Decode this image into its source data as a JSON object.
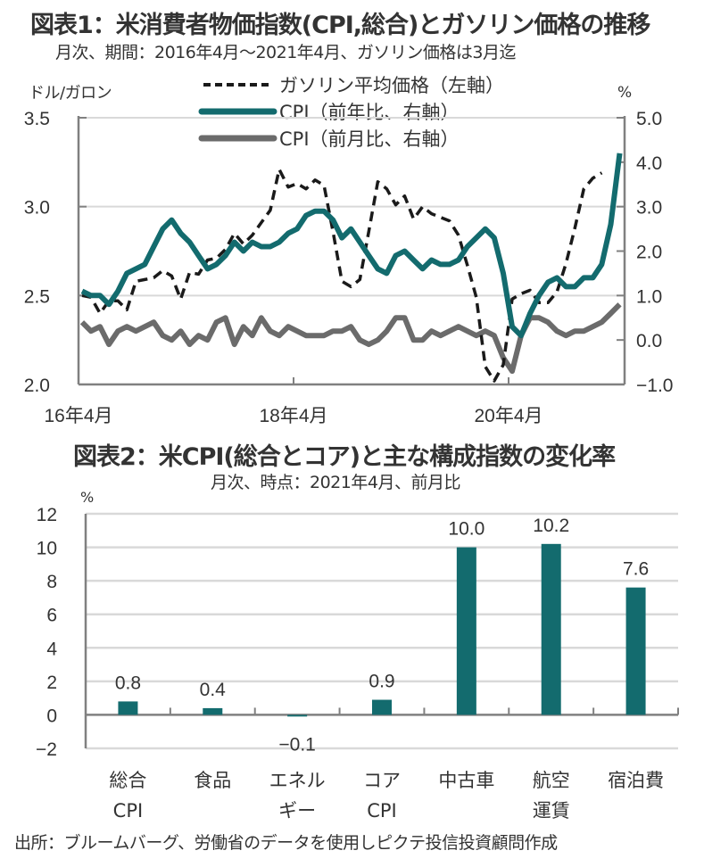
{
  "chart_data": [
    {
      "type": "line",
      "title": "図表1：米消費者物価指数(CPI,総合)とガソリン価格の推移",
      "subtitle": "月次、期間：2016年4月～2021年4月、ガソリン価格は3月迄",
      "ylabel_left": "ドル/ガロン",
      "ylabel_right": "%",
      "ylim_left": [
        2.0,
        3.5
      ],
      "ylim_right": [
        -1.0,
        5.0
      ],
      "yticks_left": [
        "3.5",
        "3.0",
        "2.5",
        "2.0"
      ],
      "yticks_right": [
        "5.0",
        "4.0",
        "3.0",
        "2.0",
        "1.0",
        "0.0",
        "−1.0"
      ],
      "yticks_left_values": [
        3.5,
        3.0,
        2.5,
        2.0
      ],
      "yticks_right_values": [
        5,
        4,
        3,
        2,
        1,
        0,
        -1
      ],
      "xticks": [
        "16年4月",
        "18年4月",
        "20年4月"
      ],
      "xticks_index": [
        0,
        24,
        48
      ],
      "x_start": "2016-04",
      "x_count": 61,
      "grid": true,
      "legend_placement": "top-center",
      "series": [
        {
          "name": "ガソリン平均価格（左軸）",
          "axis": "left",
          "style": "dashed",
          "color": "#1a1a1a",
          "values": [
            2.5,
            2.49,
            2.4,
            2.47,
            2.47,
            2.42,
            2.58,
            2.59,
            2.6,
            2.64,
            2.61,
            2.48,
            2.63,
            2.62,
            2.7,
            2.71,
            2.76,
            2.85,
            2.79,
            2.84,
            2.91,
            2.98,
            3.21,
            3.11,
            3.13,
            3.1,
            3.15,
            3.12,
            2.86,
            2.58,
            2.55,
            2.59,
            2.86,
            3.14,
            3.1,
            3.01,
            3.06,
            2.93,
            3.0,
            2.96,
            2.94,
            2.92,
            2.84,
            2.67,
            2.49,
            2.1,
            2.02,
            2.11,
            2.48,
            2.51,
            2.53,
            2.46,
            2.46,
            2.52,
            2.68,
            2.88,
            3.1,
            3.16,
            3.19
          ]
        },
        {
          "name": "CPI（前年比、右軸）",
          "axis": "right",
          "style": "solid",
          "color": "#136b6e",
          "values": [
            1.1,
            1.0,
            1.0,
            0.8,
            1.1,
            1.5,
            1.6,
            1.7,
            2.1,
            2.5,
            2.7,
            2.4,
            2.2,
            1.9,
            1.6,
            1.7,
            1.9,
            2.2,
            2.0,
            2.2,
            2.1,
            2.1,
            2.2,
            2.4,
            2.5,
            2.8,
            2.9,
            2.9,
            2.7,
            2.3,
            2.5,
            2.2,
            1.9,
            1.6,
            1.5,
            1.9,
            2.0,
            1.8,
            1.6,
            1.8,
            1.7,
            1.7,
            1.8,
            2.1,
            2.3,
            2.5,
            2.3,
            1.5,
            0.3,
            0.1,
            0.6,
            1.0,
            1.3,
            1.4,
            1.2,
            1.2,
            1.4,
            1.4,
            1.7,
            2.6,
            4.2
          ]
        },
        {
          "name": "CPI（前月比、右軸）",
          "axis": "right",
          "style": "solid",
          "color": "#6b6b6b",
          "values": [
            0.4,
            0.2,
            0.3,
            -0.1,
            0.2,
            0.3,
            0.2,
            0.3,
            0.4,
            0.1,
            0.0,
            0.2,
            -0.1,
            0.1,
            0.0,
            0.4,
            0.5,
            -0.1,
            0.3,
            0.1,
            0.5,
            0.2,
            0.1,
            0.3,
            0.2,
            0.1,
            0.1,
            0.1,
            0.2,
            0.2,
            0.3,
            0.0,
            -0.1,
            0.0,
            0.2,
            0.5,
            0.5,
            0.0,
            0.0,
            0.2,
            0.1,
            0.2,
            0.3,
            0.2,
            0.1,
            0.2,
            0.1,
            -0.4,
            -0.7,
            0.1,
            0.5,
            0.5,
            0.4,
            0.2,
            0.1,
            0.2,
            0.2,
            0.3,
            0.4,
            0.6,
            0.8
          ]
        }
      ]
    },
    {
      "type": "bar",
      "title": "図表2：米CPI(総合とコア)と主な構成指数の変化率",
      "subtitle": "月次、時点：2021年4月、前月比",
      "ylabel": "%",
      "ylim": [
        -2,
        12
      ],
      "yticks": [
        "12",
        "10",
        "8",
        "6",
        "4",
        "2",
        "0",
        "−2"
      ],
      "yticks_values": [
        12,
        10,
        8,
        6,
        4,
        2,
        0,
        -2
      ],
      "grid": true,
      "color": "#136b6e",
      "categories": [
        "総合CPI",
        "食品",
        "エネルギー",
        "コアCPI",
        "中古車",
        "航空運賃",
        "宿泊費"
      ],
      "category_lines": [
        [
          "総合",
          "CPI"
        ],
        [
          "食品",
          ""
        ],
        [
          "エネル",
          "ギー"
        ],
        [
          "コア",
          "CPI"
        ],
        [
          "中古車",
          ""
        ],
        [
          "航空",
          "運賃"
        ],
        [
          "宿泊費",
          ""
        ]
      ],
      "values": [
        0.8,
        0.4,
        -0.1,
        0.9,
        10.0,
        10.2,
        7.6
      ],
      "data_labels": [
        "0.8",
        "0.4",
        "−0.1",
        "0.9",
        "10.0",
        "10.2",
        "7.6"
      ]
    }
  ],
  "source": "出所：ブルームバーグ、労働省のデータを使用しピクテ投信投資顧問作成"
}
